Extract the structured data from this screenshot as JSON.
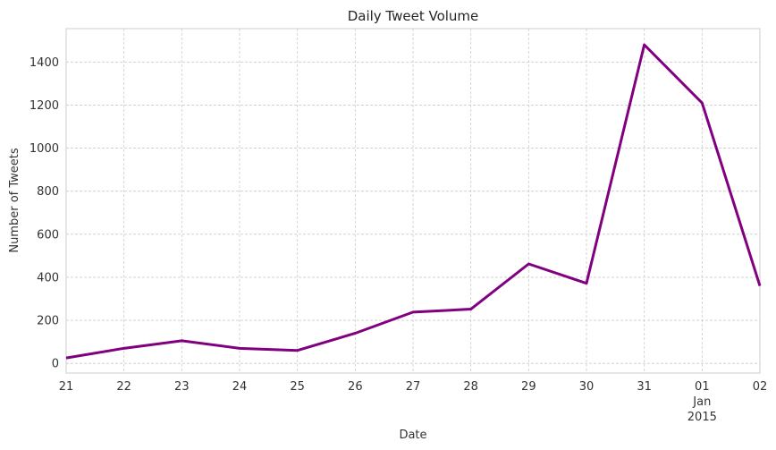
{
  "chart_data": {
    "type": "line",
    "title": "Daily Tweet Volume",
    "xlabel": "Date",
    "ylabel": "Number of Tweets",
    "x": [
      "2014-12-21",
      "2014-12-22",
      "2014-12-23",
      "2014-12-24",
      "2014-12-25",
      "2014-12-26",
      "2014-12-27",
      "2014-12-28",
      "2014-12-29",
      "2014-12-30",
      "2014-12-31",
      "2015-01-01",
      "2015-01-02"
    ],
    "x_tick_labels": [
      "21",
      "22",
      "23",
      "24",
      "25",
      "26",
      "27",
      "28",
      "29",
      "30",
      "31",
      "01",
      "02"
    ],
    "x_secondary_label": {
      "month": "Jan",
      "year": "2015",
      "at": "2015-01-01"
    },
    "series": [
      {
        "values": [
          25,
          70,
          105,
          70,
          60,
          140,
          238,
          252,
          462,
          372,
          1480,
          1210,
          360
        ],
        "color": "#800080"
      }
    ],
    "ylim": [
      -45,
      1555
    ],
    "yticks": [
      0,
      200,
      400,
      600,
      800,
      1000,
      1200,
      1400
    ],
    "grid": true,
    "legend": "none"
  },
  "colors": {
    "line": "#800080",
    "grid": "#cccccc",
    "spine": "#cccccc",
    "text": "#333333"
  }
}
